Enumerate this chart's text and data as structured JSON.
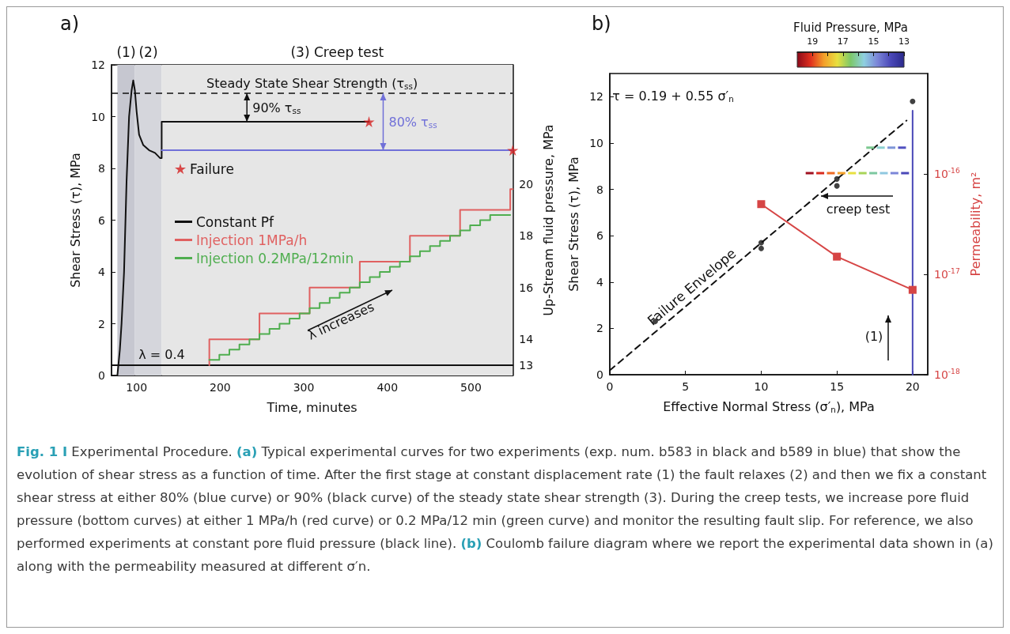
{
  "chart_data": [
    {
      "type": "line",
      "title": "a)",
      "xlabel": "Time, minutes",
      "ylabel": "Shear Stress (τ), MPa",
      "y2label": "Up-Stream fluid pressure, MPa",
      "xlim": [
        70,
        550
      ],
      "xticks": [
        100,
        200,
        300,
        400,
        500
      ],
      "ylim": [
        0,
        12
      ],
      "yticks": [
        0,
        2,
        4,
        6,
        8,
        10,
        12
      ],
      "y2lim": [
        12.6,
        24.6
      ],
      "y2ticks": [
        13,
        14,
        16,
        18,
        20
      ],
      "legend": "left",
      "grid": false,
      "marker": "none",
      "series": [
        {
          "color": "#111111",
          "x": [
            77,
            80,
            82,
            85,
            88,
            91,
            94,
            96,
            98,
            100,
            103,
            108,
            115,
            122,
            128,
            130,
            130,
            378
          ],
          "values": [
            0,
            1,
            2,
            4,
            7.5,
            10,
            11,
            11.4,
            11,
            10.2,
            9.3,
            8.9,
            8.7,
            8.6,
            8.4,
            8.4,
            9.8,
            9.8
          ]
        },
        {
          "color": "#7070d8",
          "x": [
            130,
            550
          ],
          "values": [
            8.7,
            8.7
          ]
        },
        {
          "name": "Failure",
          "type": "scatter",
          "marker": "star",
          "color": "#d42020",
          "x": [
            378,
            550
          ],
          "values": [
            9.8,
            8.7
          ]
        },
        {
          "name": "Constant Pf",
          "axis": "y2",
          "color": "#111111",
          "x": [
            70,
            550
          ],
          "values": [
            13,
            13
          ]
        },
        {
          "name": "Injection 1MPa/h",
          "type": "step",
          "axis": "y2",
          "color": "#e06060",
          "x": [
            187,
            187,
            247,
            307,
            367,
            427,
            487,
            547,
            550
          ],
          "values": [
            13,
            14,
            15,
            16,
            17,
            18,
            19,
            19.8,
            19.8
          ]
        },
        {
          "name": "Injection 0.2MPa/12min",
          "type": "step",
          "axis": "y2",
          "color": "#4fae4f",
          "x": [
            187,
            199,
            211,
            223,
            235,
            247,
            259,
            271,
            283,
            295,
            307,
            319,
            331,
            343,
            355,
            367,
            379,
            391,
            403,
            415,
            427,
            439,
            451,
            463,
            475,
            487,
            499,
            511,
            523,
            547
          ],
          "values": [
            13.2,
            13.4,
            13.6,
            13.8,
            14,
            14.2,
            14.4,
            14.6,
            14.8,
            15,
            15.2,
            15.4,
            15.6,
            15.8,
            16,
            16.2,
            16.4,
            16.6,
            16.8,
            17,
            17.2,
            17.4,
            17.6,
            17.8,
            18,
            18.2,
            18.4,
            18.6,
            18.8,
            18.8
          ]
        }
      ],
      "ref_lines": [
        {
          "axis": "y",
          "value": 10.9,
          "label": "Steady State Shear Strength (τ$_{ss}$)",
          "line_style": "dashed",
          "color": "#111111"
        }
      ],
      "bands": [
        {
          "axis": "x",
          "from": 77,
          "to": 98,
          "label": "(1)",
          "color": "#c6c7d0"
        },
        {
          "axis": "x",
          "from": 98,
          "to": 130,
          "label": "(2)",
          "color": "#d5d6dc"
        },
        {
          "axis": "x",
          "from": 130,
          "to": 550,
          "label": "(3) Creep test",
          "color": "#e6e6e6"
        }
      ],
      "annotations": [
        {
          "text": "90% τ$_{ss}$",
          "x": 232,
          "y": 9.8
        },
        {
          "text": "80% τ$_{ss}$",
          "x": 395,
          "y": 8.7
        },
        {
          "text": "λ = 0.4",
          "x": 130,
          "y": 0.8
        },
        "λ increases",
        "Fig. 1 I",
        " Experimental Procedure. ",
        "(a)",
        " Typical experimental curves for two experiments (exp. num. b583 in black and b589 in blue) that show the evolution of shear stress as a function of time. After the first stage at constant displacement rate (1) the fault relaxes (2) and then we fix a constant shear stress at either 80% (blue curve) or 90% (black curve) of the steady state shear strength (3). During the creep tests, we increase pore fluid pressure (bottom curves) at either 1 MPa/h (red curve) or 0.2 MPa/12 min (green curve) and monitor the resulting fault slip. For reference, we also performed experiments at constant pore fluid pressure (black line). ",
        "(b)",
        " Coulomb failure diagram where we report the experimental data shown in (a) along with the permeability measured at different σ′n."
      ]
    },
    {
      "type": "scatter",
      "title": "b)",
      "xlabel": "Effective Normal Stress (σ′$_{n}$), MPa",
      "ylabel": "Shear Stress (τ), MPa",
      "y2label": "Permeability, m²",
      "xlim": [
        0,
        21
      ],
      "xticks": [
        0,
        5,
        10,
        15,
        20
      ],
      "ylim": [
        0,
        13
      ],
      "yticks": [
        0,
        2,
        4,
        6,
        8,
        10,
        12
      ],
      "y2lim": [
        1e-18,
        1e-15
      ],
      "y2ticks": [
        {
          "value": 1e-18,
          "label": "10$^{-18}$"
        },
        {
          "value": 1e-17,
          "label": "10$^{-17}$"
        },
        {
          "value": 1e-16,
          "label": "10$^{-16}$"
        }
      ],
      "log": "y2",
      "grid": false,
      "marker": "circle",
      "clabel": "Fluid Pressure, MPa",
      "clim": [
        20,
        13
      ],
      "cticks": [
        13,
        {
          "value": 14,
          "label": null
        },
        15,
        {
          "value": 16,
          "label": null
        },
        17,
        {
          "value": 18,
          "label": null
        },
        19
      ],
      "series": [
        {
          "name": "Failure Envelope",
          "type": "line",
          "line_style": "dashed",
          "marker": "none",
          "color": "#111111",
          "x": [
            0,
            19.6
          ],
          "values": [
            0.19,
            10.97
          ]
        },
        {
          "type": "line",
          "marker": "none",
          "color": "#4a48b8",
          "x": [
            20,
            20
          ],
          "values": [
            0,
            11.4
          ]
        },
        {
          "marker": "square",
          "x": [
            13.2,
            13.9,
            14.6,
            15.3,
            16,
            16.7,
            17.4,
            18.1,
            18.8,
            19.5
          ],
          "values": [
            8.7,
            8.7,
            8.7,
            8.7,
            8.7,
            8.7,
            8.7,
            8.7,
            8.7,
            8.7
          ],
          "colors": [
            "#a01020",
            "#d82a1e",
            "#ee6a24",
            "#f4a02a",
            "#e8e040",
            "#a8d458",
            "#7cc8a0",
            "#8fc8e0",
            "#7b86d8",
            "#4a48b8"
          ]
        },
        {
          "marker": "square",
          "x": [
            17.2,
            17.9,
            18.6,
            19.3
          ],
          "values": [
            9.8,
            9.8,
            9.8,
            9.8
          ],
          "colors": [
            "#7cc890",
            "#8cd0d0",
            "#7e96d8",
            "#5050c0"
          ]
        },
        {
          "color": "#111111",
          "x": [
            3,
            10,
            10,
            15,
            15,
            20
          ],
          "values": [
            2.3,
            5.7,
            5.45,
            8.45,
            8.15,
            11.8
          ]
        },
        {
          "type": "line",
          "axis": "y2",
          "marker": "square",
          "color": "#d64545",
          "x": [
            10,
            15,
            20
          ],
          "values": [
            5e-17,
            1.5e-17,
            7e-18
          ]
        }
      ],
      "annotations": [
        "τ = 0.19 + 0.55 σ′$_{n}$",
        "creep test",
        "(1)"
      ]
    }
  ]
}
